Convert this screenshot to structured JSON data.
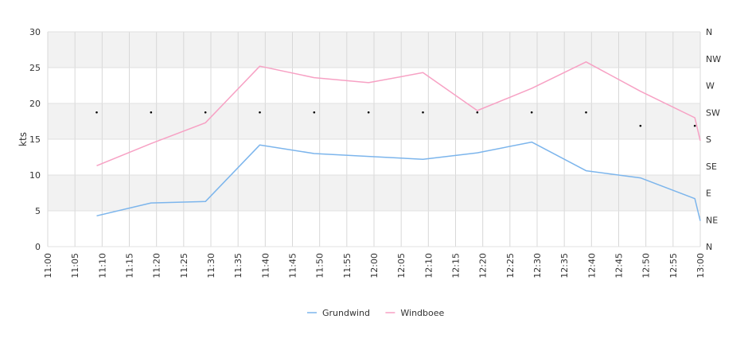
{
  "chart_data": {
    "type": "line",
    "ylabel": "kts",
    "ylim": [
      0,
      30
    ],
    "y_ticks": [
      "0",
      "5",
      "10",
      "15",
      "20",
      "25",
      "30"
    ],
    "x_ticks": [
      "11:00",
      "11:05",
      "11:10",
      "11:15",
      "11:20",
      "11:25",
      "11:30",
      "11:35",
      "11:40",
      "11:45",
      "11:50",
      "11:55",
      "12:00",
      "12:05",
      "12:10",
      "12:15",
      "12:20",
      "12:25",
      "12:30",
      "12:35",
      "12:40",
      "12:45",
      "12:50",
      "12:55",
      "13:00"
    ],
    "direction_axis": [
      "N",
      "NW",
      "W",
      "SW",
      "S",
      "SE",
      "E",
      "NE",
      "N"
    ],
    "grid": true,
    "legend_position": "bottom",
    "x": [
      "11:09",
      "11:19",
      "11:29",
      "11:39",
      "11:49",
      "11:59",
      "12:09",
      "12:19",
      "12:29",
      "12:39",
      "12:49",
      "12:59",
      "13:00"
    ],
    "series": [
      {
        "name": "Grundwind",
        "color": "#7cb5ec",
        "values": [
          4.3,
          6.1,
          6.3,
          14.2,
          13.0,
          12.6,
          12.2,
          13.1,
          14.6,
          10.6,
          9.6,
          6.7,
          3.6
        ]
      },
      {
        "name": "Windboee",
        "color": "#f7a1c4",
        "values": [
          11.3,
          14.4,
          17.3,
          25.2,
          23.6,
          22.9,
          24.3,
          19.0,
          22.1,
          25.8,
          21.7,
          18.0,
          14.8
        ]
      }
    ],
    "direction_points": {
      "x": [
        "11:09",
        "11:19",
        "11:29",
        "11:39",
        "11:49",
        "11:59",
        "12:09",
        "12:19",
        "12:29",
        "12:39",
        "12:49",
        "12:59"
      ],
      "values": [
        "SW",
        "SW",
        "SW",
        "SW",
        "SW",
        "SW",
        "SW",
        "SW",
        "SW",
        "SW",
        "SSW",
        "SSW"
      ]
    }
  }
}
